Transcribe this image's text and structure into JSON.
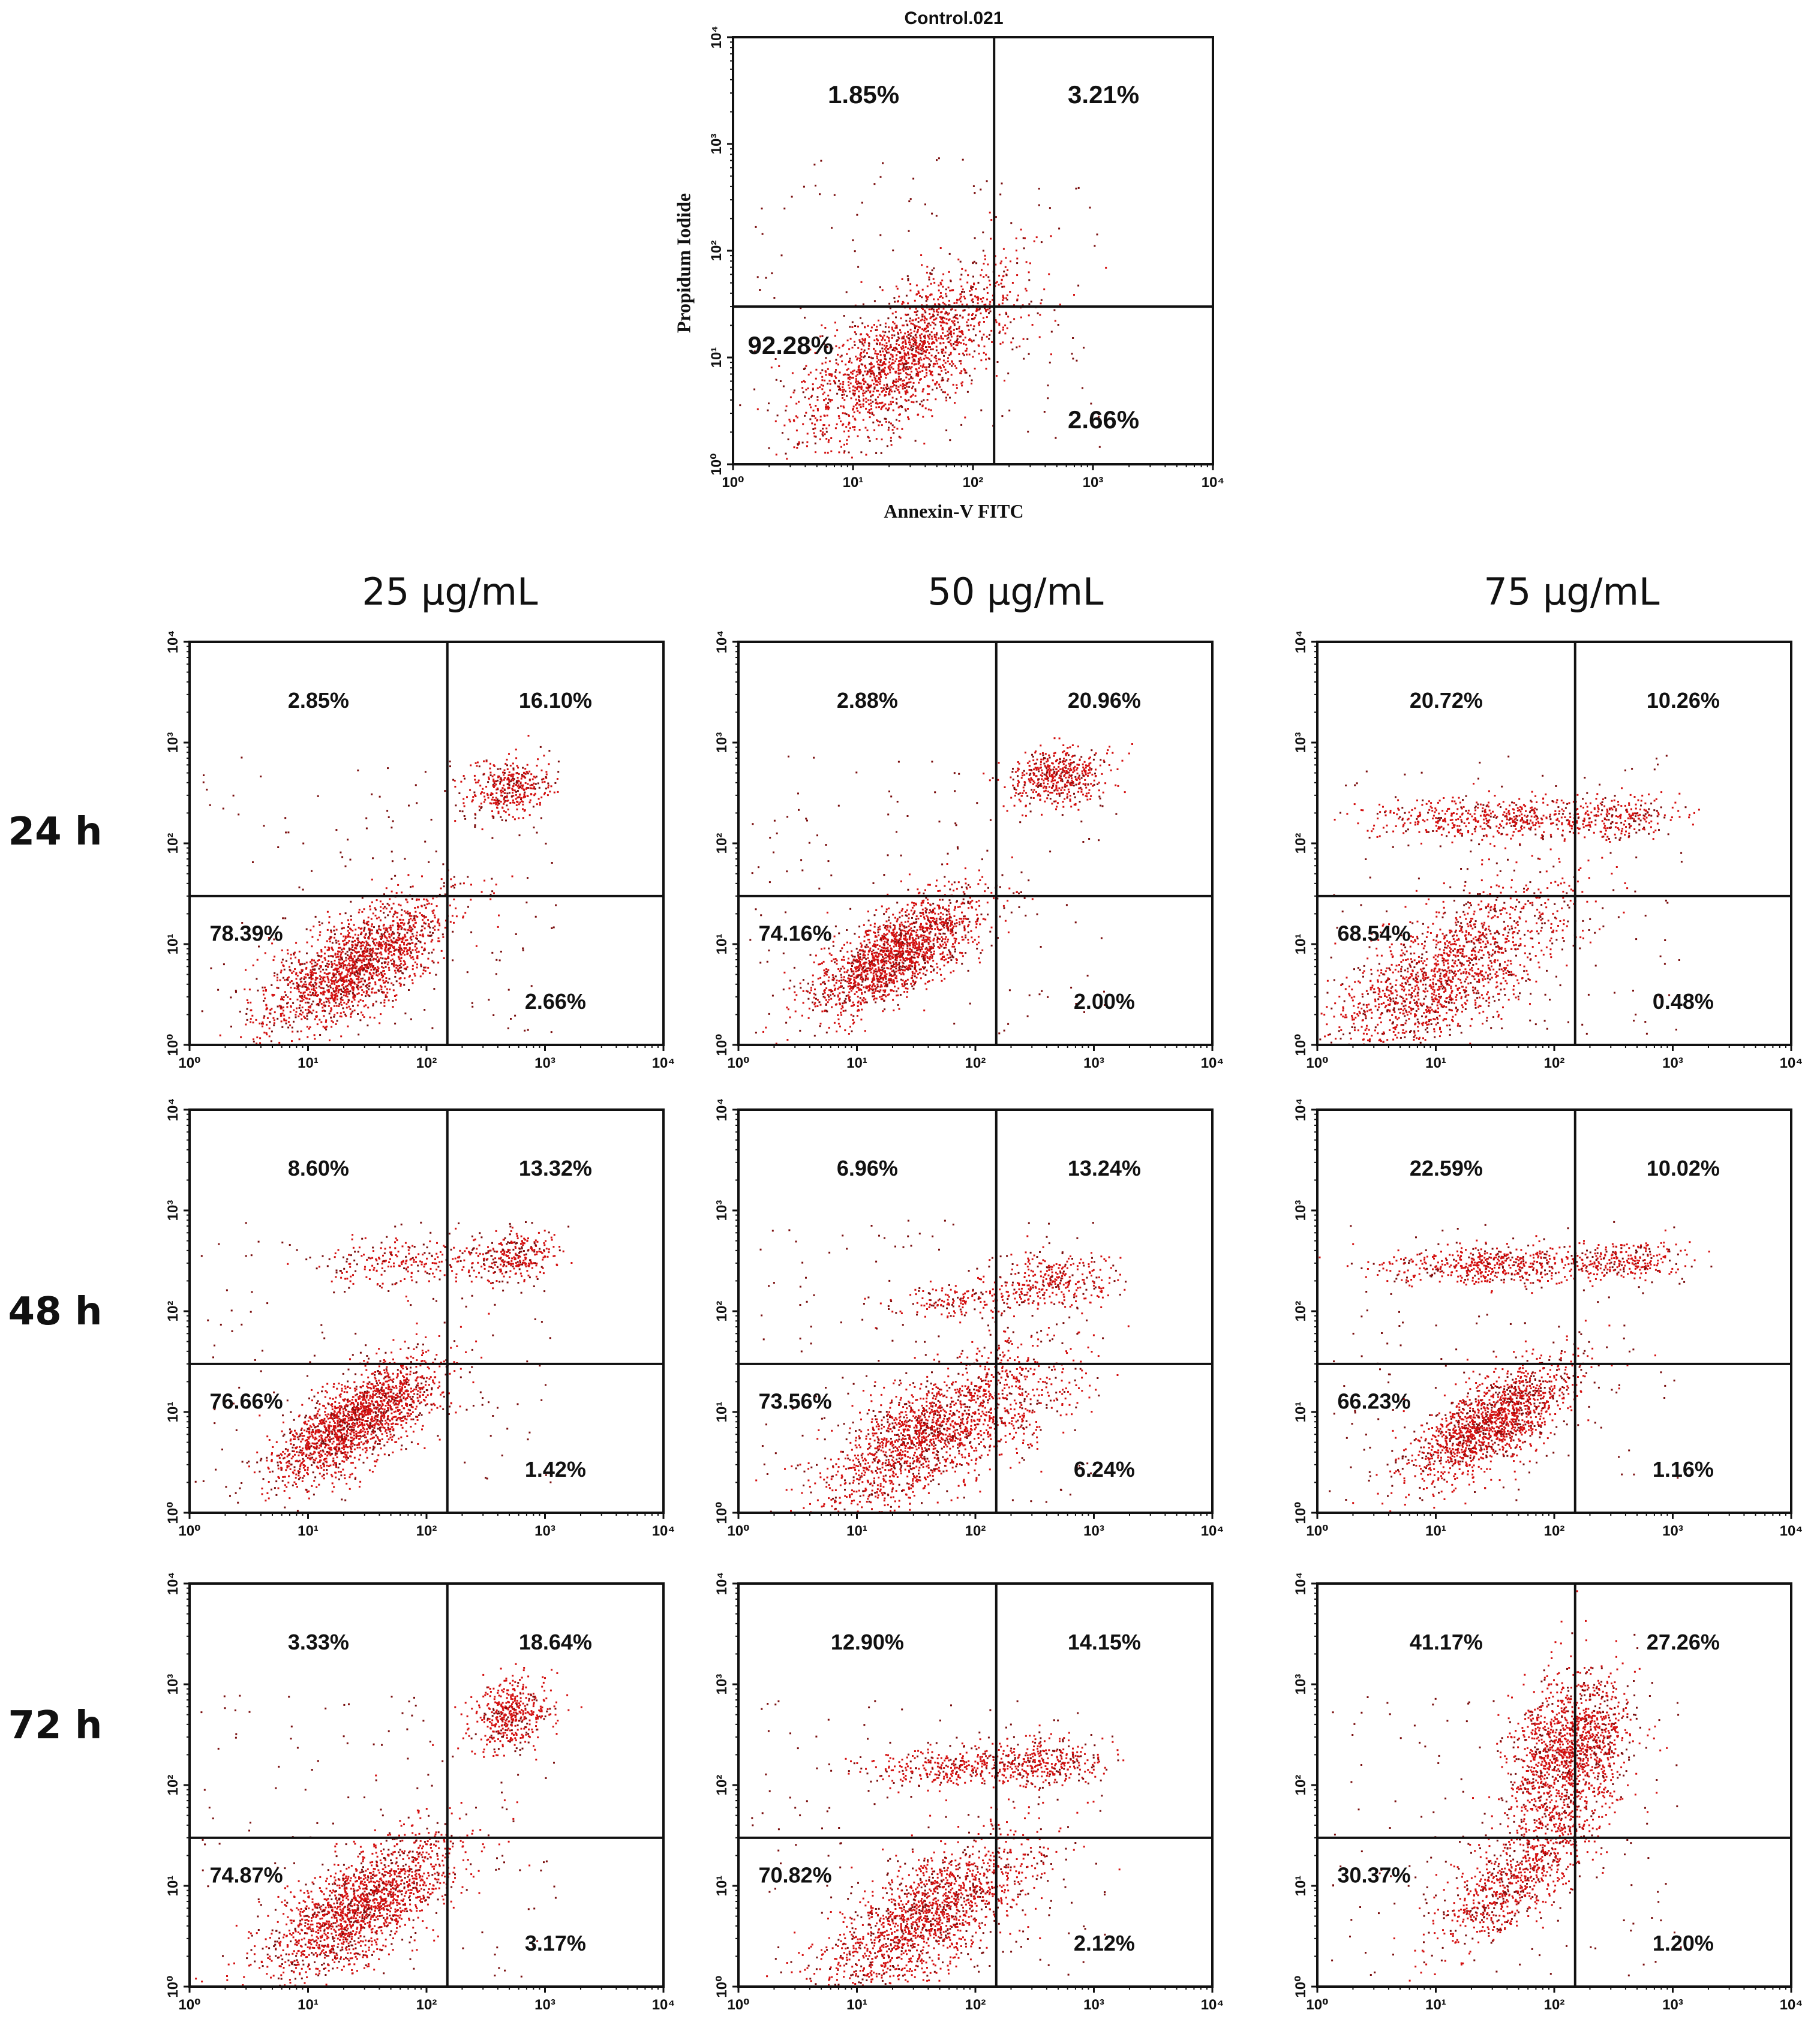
{
  "column_headers": [
    "25 µg/mL",
    "50 µg/mL",
    "75 µg/mL"
  ],
  "row_headers": [
    "24 h",
    "48 h",
    "72 h"
  ],
  "colors": {
    "dots": "#d41010",
    "dots_dark": "#7a0d0d",
    "axes": "#111111"
  },
  "chart_data": [
    {
      "type": "scatter",
      "title": "Control.021",
      "xlabel": "Annexin-V FITC",
      "ylabel": "Propidum Iodide",
      "xscale": "log",
      "yscale": "log",
      "xlim": [
        1,
        10000
      ],
      "ylim": [
        1,
        10000
      ],
      "xticks": [
        "10⁰",
        "10¹",
        "10²",
        "10³",
        "10⁴"
      ],
      "yticks": [
        "10⁰",
        "10¹",
        "10²",
        "10³",
        "10⁴"
      ],
      "gate": {
        "x": 150,
        "y": 30
      },
      "quadrants": {
        "upper_left": "1.85%",
        "upper_right": "3.21%",
        "lower_left": "92.28%",
        "lower_right": "2.66%"
      },
      "populations": [
        {
          "center": [
            28,
            10
          ],
          "spread": [
            0.45,
            0.4
          ],
          "weight": 0.93
        }
      ]
    },
    {
      "type": "scatter",
      "row": "24 h",
      "column": "25 µg/mL",
      "xscale": "log",
      "yscale": "log",
      "xlim": [
        1,
        10000
      ],
      "ylim": [
        1,
        10000
      ],
      "xticks": [
        "10⁰",
        "10¹",
        "10²",
        "10³",
        "10⁴"
      ],
      "yticks": [
        "10⁰",
        "10¹",
        "10²",
        "10³",
        "10⁴"
      ],
      "gate": {
        "x": 150,
        "y": 30
      },
      "quadrants": {
        "upper_left": "2.85%",
        "upper_right": "16.10%",
        "lower_left": "78.39%",
        "lower_right": "2.66%"
      },
      "populations": [
        {
          "center": [
            25,
            6
          ],
          "spread": [
            0.4,
            0.35
          ],
          "weight": 0.78
        },
        {
          "center": [
            500,
            350
          ],
          "spread": [
            0.18,
            0.15
          ],
          "weight": 0.16
        }
      ]
    },
    {
      "type": "scatter",
      "row": "24 h",
      "column": "50 µg/mL",
      "xscale": "log",
      "yscale": "log",
      "xlim": [
        1,
        10000
      ],
      "ylim": [
        1,
        10000
      ],
      "xticks": [
        "10⁰",
        "10¹",
        "10²",
        "10³",
        "10⁴"
      ],
      "yticks": [
        "10⁰",
        "10¹",
        "10²",
        "10³",
        "10⁴"
      ],
      "gate": {
        "x": 150,
        "y": 30
      },
      "quadrants": {
        "upper_left": "2.88%",
        "upper_right": "20.96%",
        "lower_left": "74.16%",
        "lower_right": "2.00%"
      },
      "populations": [
        {
          "center": [
            22,
            8
          ],
          "spread": [
            0.35,
            0.3
          ],
          "weight": 0.74
        },
        {
          "center": [
            500,
            450
          ],
          "spread": [
            0.2,
            0.15
          ],
          "weight": 0.21
        }
      ]
    },
    {
      "type": "scatter",
      "row": "24 h",
      "column": "75 µg/mL",
      "xscale": "log",
      "yscale": "log",
      "xlim": [
        1,
        10000
      ],
      "ylim": [
        1,
        10000
      ],
      "xticks": [
        "10⁰",
        "10¹",
        "10²",
        "10³",
        "10⁴"
      ],
      "yticks": [
        "10⁰",
        "10¹",
        "10²",
        "10³",
        "10⁴"
      ],
      "gate": {
        "x": 150,
        "y": 30
      },
      "quadrants": {
        "upper_left": "20.72%",
        "upper_right": "10.26%",
        "lower_left": "68.54%",
        "lower_right": "0.48%"
      },
      "populations": [
        {
          "center": [
            12,
            5
          ],
          "spread": [
            0.5,
            0.45
          ],
          "weight": 0.68
        },
        {
          "center": [
            30,
            180
          ],
          "spread": [
            0.5,
            0.1
          ],
          "weight": 0.21
        },
        {
          "center": [
            350,
            180
          ],
          "spread": [
            0.25,
            0.1
          ],
          "weight": 0.1
        }
      ]
    },
    {
      "type": "scatter",
      "row": "48 h",
      "column": "25 µg/mL",
      "xscale": "log",
      "yscale": "log",
      "xlim": [
        1,
        10000
      ],
      "ylim": [
        1,
        10000
      ],
      "xticks": [
        "10⁰",
        "10¹",
        "10²",
        "10³",
        "10⁴"
      ],
      "yticks": [
        "10⁰",
        "10¹",
        "10²",
        "10³",
        "10⁴"
      ],
      "gate": {
        "x": 150,
        "y": 30
      },
      "quadrants": {
        "upper_left": "8.60%",
        "upper_right": "13.32%",
        "lower_left": "76.66%",
        "lower_right": "1.42%"
      },
      "populations": [
        {
          "center": [
            25,
            8
          ],
          "spread": [
            0.35,
            0.3
          ],
          "weight": 0.77
        },
        {
          "center": [
            60,
            300
          ],
          "spread": [
            0.35,
            0.12
          ],
          "weight": 0.09
        },
        {
          "center": [
            500,
            350
          ],
          "spread": [
            0.2,
            0.12
          ],
          "weight": 0.13
        }
      ]
    },
    {
      "type": "scatter",
      "row": "48 h",
      "column": "50 µg/mL",
      "xscale": "log",
      "yscale": "log",
      "xlim": [
        1,
        10000
      ],
      "ylim": [
        1,
        10000
      ],
      "xticks": [
        "10⁰",
        "10¹",
        "10²",
        "10³",
        "10⁴"
      ],
      "yticks": [
        "10⁰",
        "10¹",
        "10²",
        "10³",
        "10⁴"
      ],
      "gate": {
        "x": 150,
        "y": 30
      },
      "quadrants": {
        "upper_left": "6.96%",
        "upper_right": "13.24%",
        "lower_left": "73.56%",
        "lower_right": "6.24%"
      },
      "populations": [
        {
          "center": [
            40,
            6
          ],
          "spread": [
            0.45,
            0.4
          ],
          "weight": 0.74
        },
        {
          "center": [
            80,
            130
          ],
          "spread": [
            0.3,
            0.1
          ],
          "weight": 0.07
        },
        {
          "center": [
            450,
            200
          ],
          "spread": [
            0.25,
            0.15
          ],
          "weight": 0.13
        },
        {
          "center": [
            300,
            10
          ],
          "spread": [
            0.3,
            0.3
          ],
          "weight": 0.06
        }
      ]
    },
    {
      "type": "scatter",
      "row": "48 h",
      "column": "75 µg/mL",
      "xscale": "log",
      "yscale": "log",
      "xlim": [
        1,
        10000
      ],
      "ylim": [
        1,
        10000
      ],
      "xticks": [
        "10⁰",
        "10¹",
        "10²",
        "10³",
        "10⁴"
      ],
      "yticks": [
        "10⁰",
        "10¹",
        "10²",
        "10³",
        "10⁴"
      ],
      "gate": {
        "x": 150,
        "y": 30
      },
      "quadrants": {
        "upper_left": "22.59%",
        "upper_right": "10.02%",
        "lower_left": "66.23%",
        "lower_right": "1.16%"
      },
      "populations": [
        {
          "center": [
            30,
            8
          ],
          "spread": [
            0.35,
            0.3
          ],
          "weight": 0.66
        },
        {
          "center": [
            30,
            280
          ],
          "spread": [
            0.45,
            0.1
          ],
          "weight": 0.23
        },
        {
          "center": [
            400,
            320
          ],
          "spread": [
            0.25,
            0.1
          ],
          "weight": 0.1
        }
      ]
    },
    {
      "type": "scatter",
      "row": "72 h",
      "column": "25 µg/mL",
      "xscale": "log",
      "yscale": "log",
      "xlim": [
        1,
        10000
      ],
      "ylim": [
        1,
        10000
      ],
      "xticks": [
        "10⁰",
        "10¹",
        "10²",
        "10³",
        "10⁴"
      ],
      "yticks": [
        "10⁰",
        "10¹",
        "10²",
        "10³",
        "10⁴"
      ],
      "gate": {
        "x": 150,
        "y": 30
      },
      "quadrants": {
        "upper_left": "3.33%",
        "upper_right": "18.64%",
        "lower_left": "74.87%",
        "lower_right": "3.17%"
      },
      "populations": [
        {
          "center": [
            28,
            6
          ],
          "spread": [
            0.4,
            0.35
          ],
          "weight": 0.75
        },
        {
          "center": [
            500,
            500
          ],
          "spread": [
            0.18,
            0.18
          ],
          "weight": 0.19
        }
      ]
    },
    {
      "type": "scatter",
      "row": "72 h",
      "column": "50 µg/mL",
      "xscale": "log",
      "yscale": "log",
      "xlim": [
        1,
        10000
      ],
      "ylim": [
        1,
        10000
      ],
      "xticks": [
        "10⁰",
        "10¹",
        "10²",
        "10³",
        "10⁴"
      ],
      "yticks": [
        "10⁰",
        "10¹",
        "10²",
        "10³",
        "10⁴"
      ],
      "gate": {
        "x": 150,
        "y": 30
      },
      "quadrants": {
        "upper_left": "12.90%",
        "upper_right": "14.15%",
        "lower_left": "70.82%",
        "lower_right": "2.12%"
      },
      "populations": [
        {
          "center": [
            40,
            5
          ],
          "spread": [
            0.45,
            0.4
          ],
          "weight": 0.71
        },
        {
          "center": [
            60,
            150
          ],
          "spread": [
            0.35,
            0.1
          ],
          "weight": 0.13
        },
        {
          "center": [
            400,
            170
          ],
          "spread": [
            0.25,
            0.12
          ],
          "weight": 0.14
        }
      ]
    },
    {
      "type": "scatter",
      "row": "72 h",
      "column": "75 µg/mL",
      "xscale": "log",
      "yscale": "log",
      "xlim": [
        1,
        10000
      ],
      "ylim": [
        1,
        10000
      ],
      "xticks": [
        "10⁰",
        "10¹",
        "10²",
        "10³",
        "10⁴"
      ],
      "yticks": [
        "10⁰",
        "10¹",
        "10²",
        "10³",
        "10⁴"
      ],
      "gate": {
        "x": 150,
        "y": 30
      },
      "quadrants": {
        "upper_left": "41.17%",
        "upper_right": "27.26%",
        "lower_left": "30.37%",
        "lower_right": "1.20%"
      },
      "populations": [
        {
          "center": [
            40,
            10
          ],
          "spread": [
            0.3,
            0.3
          ],
          "weight": 0.3
        },
        {
          "center": [
            100,
            150
          ],
          "spread": [
            0.2,
            0.45
          ],
          "weight": 0.41
        },
        {
          "center": [
            200,
            300
          ],
          "spread": [
            0.2,
            0.35
          ],
          "weight": 0.27
        }
      ]
    }
  ]
}
